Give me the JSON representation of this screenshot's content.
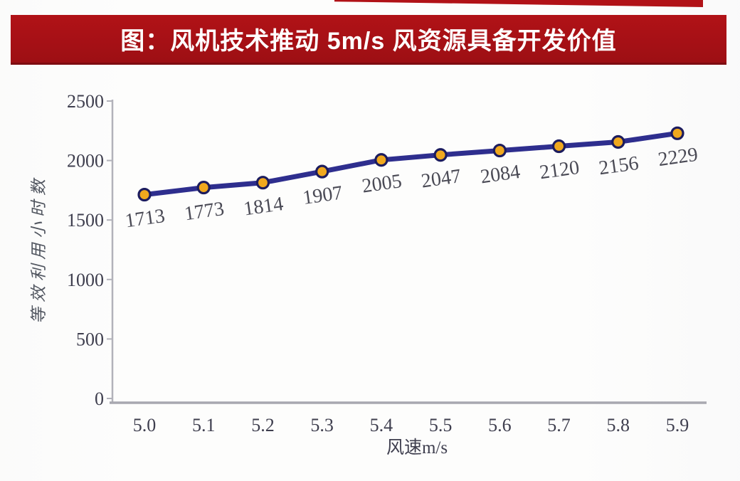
{
  "banner": {
    "title": "图：风机技术推动 5m/s 风资源具备开发价值",
    "bg_color": "#b11217",
    "bg_color_dark": "#9d0f14",
    "border_color": "#7e0c11",
    "text_color": "#ffffff"
  },
  "chart_data": {
    "type": "line",
    "title": "",
    "categories": [
      "5.0",
      "5.1",
      "5.2",
      "5.3",
      "5.4",
      "5.5",
      "5.6",
      "5.7",
      "5.8",
      "5.9"
    ],
    "series": [
      {
        "name": "等效利用小时数",
        "values": [
          1713,
          1773,
          1814,
          1907,
          2005,
          2047,
          2084,
          2120,
          2156,
          2229
        ]
      }
    ],
    "xlabel": "风速m/s",
    "ylabel": "等效利用小时数",
    "ylim": [
      0,
      2500
    ],
    "yticks": [
      0,
      500,
      1000,
      1500,
      2000,
      2500
    ],
    "grid": false,
    "legend": "none",
    "data_labels_shown": true,
    "colors": {
      "line": "#2e2e8e",
      "marker_fill": "#f0a81e",
      "marker_stroke": "#1c1c5e",
      "axis": "#b2b2ba",
      "axis_bottom": "#a8a8b0",
      "tick_text": "#3e3e4e",
      "data_label_text": "#4a4a55"
    }
  }
}
